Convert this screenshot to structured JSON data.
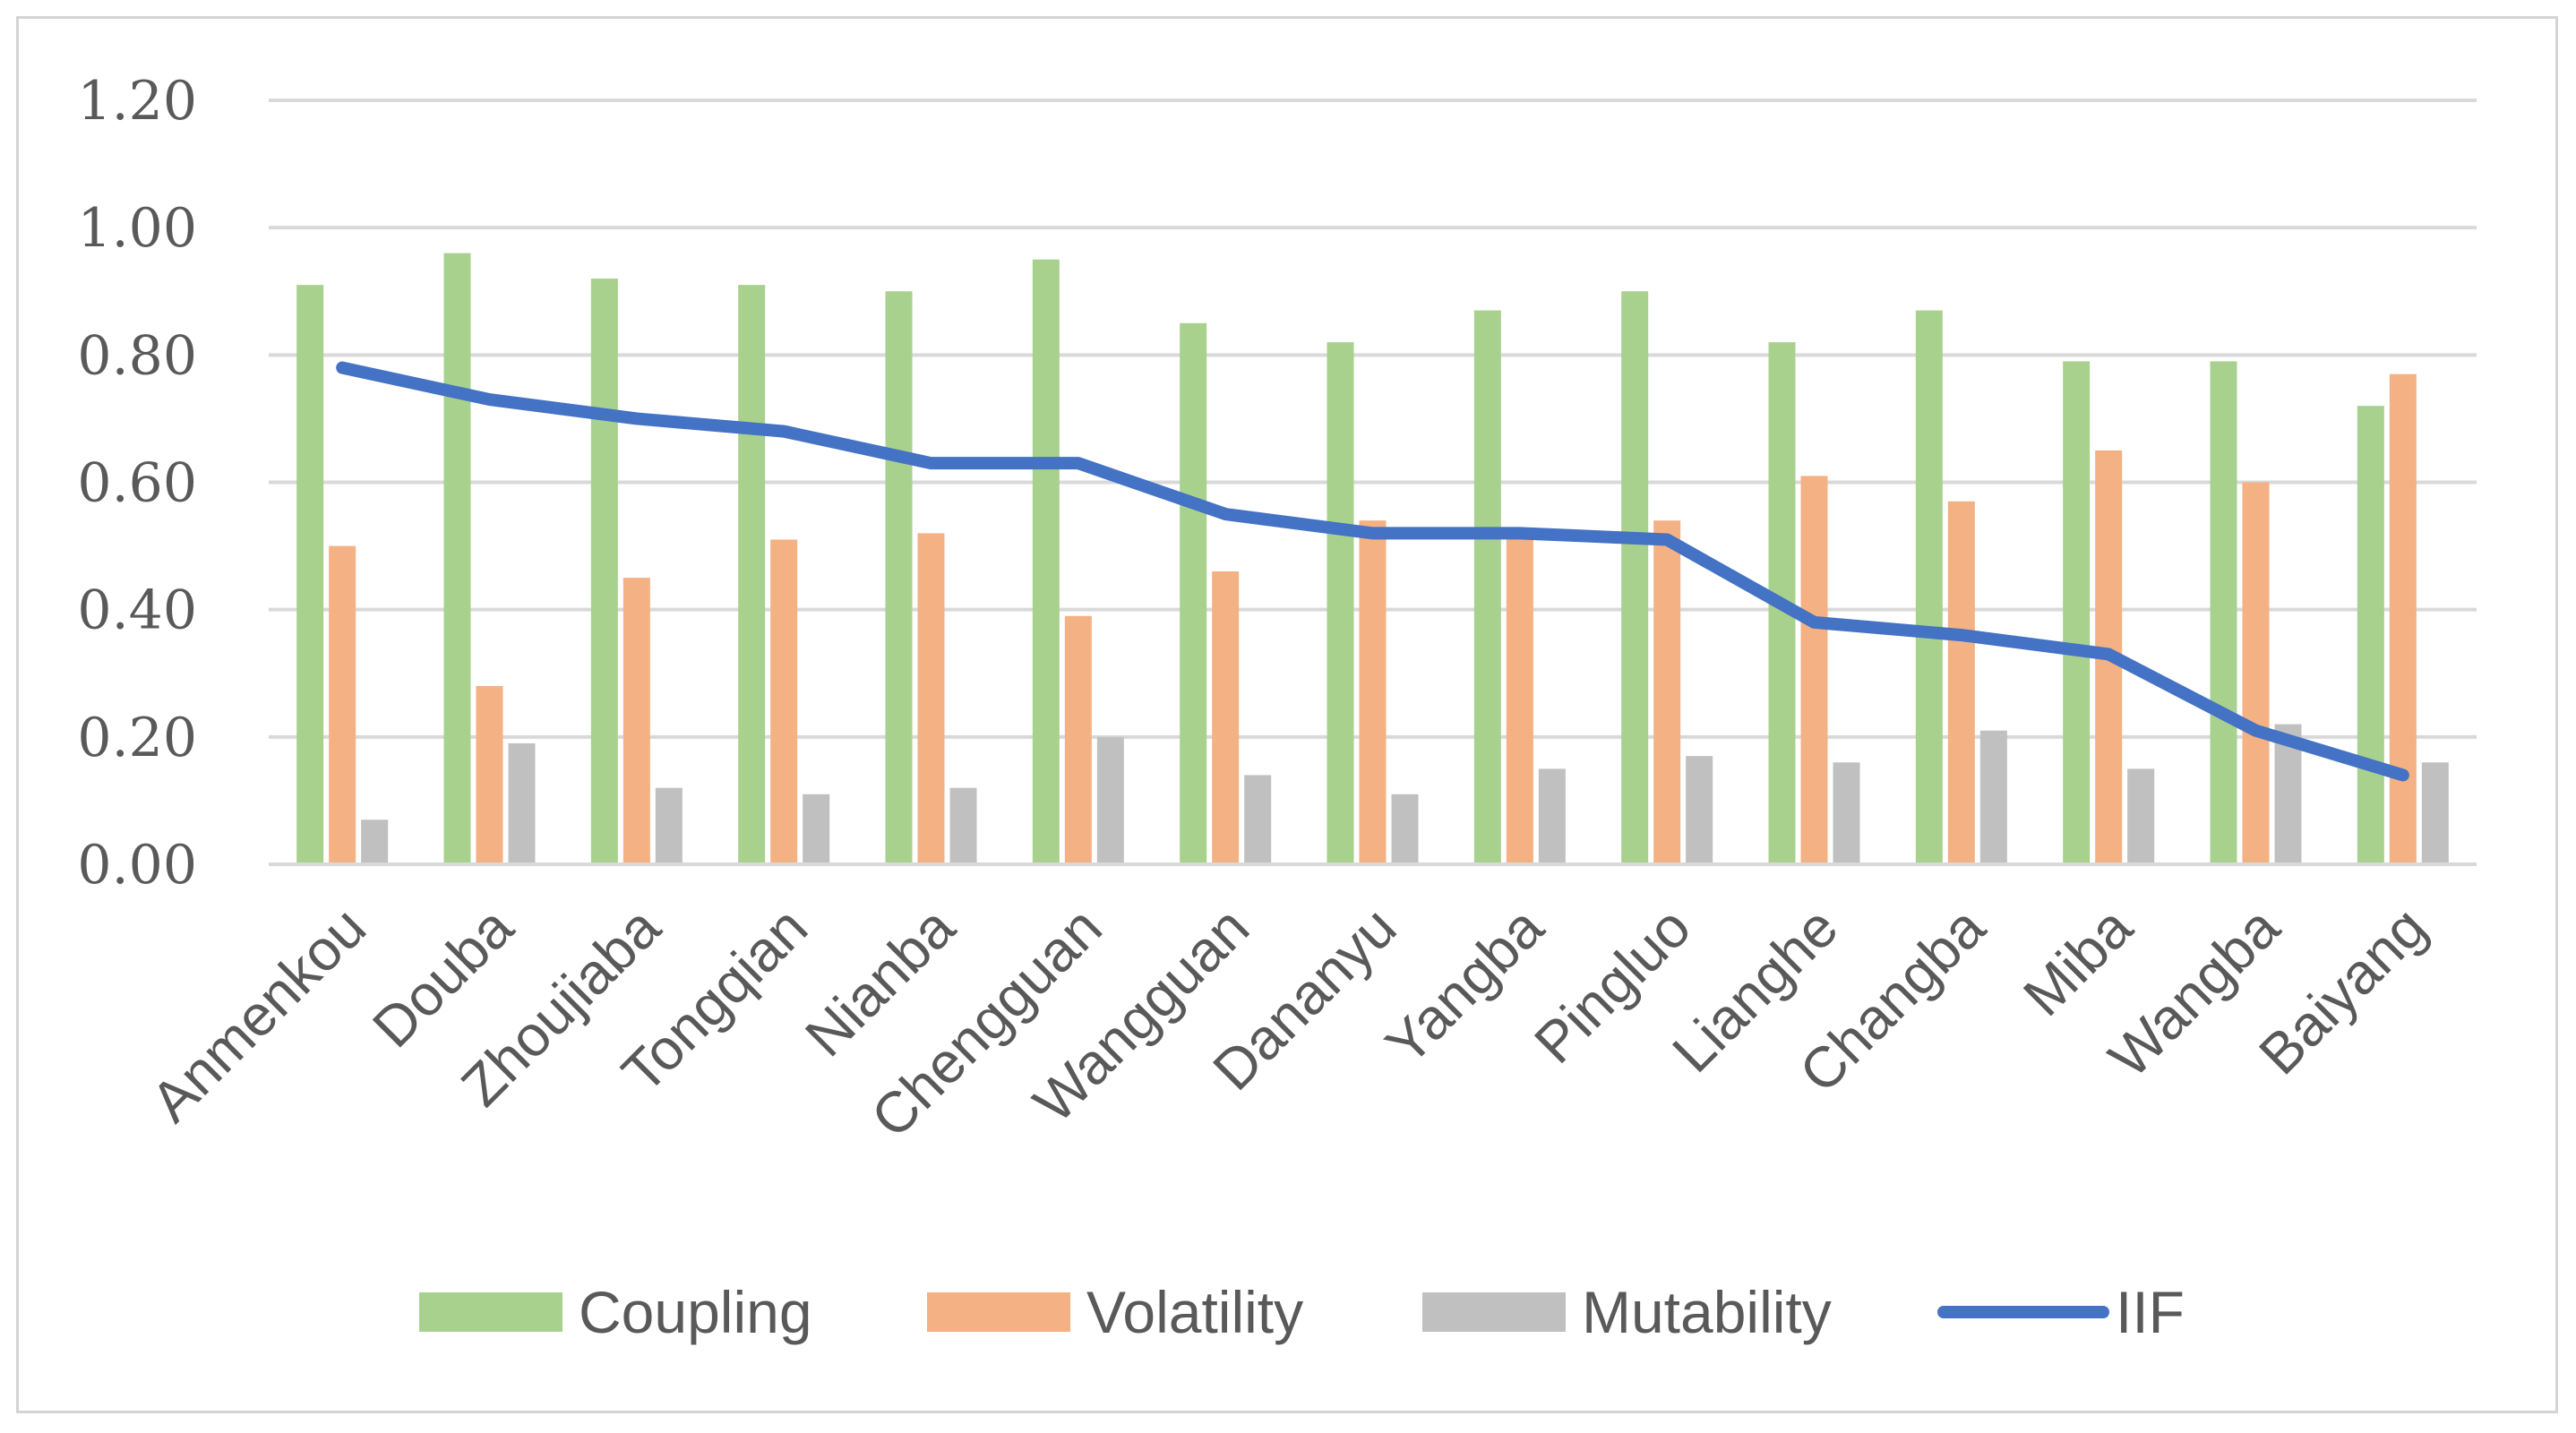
{
  "chart_data": {
    "type": "bar",
    "title": "",
    "xlabel": "",
    "ylabel": "",
    "ylim": [
      0,
      1.2
    ],
    "ytick_step": 0.2,
    "ytick_labels": [
      "0.00",
      "0.20",
      "0.40",
      "0.60",
      "0.80",
      "1.00",
      "1.20"
    ],
    "grid": true,
    "legend_position": "bottom",
    "categories": [
      "Anmenkou",
      "Douba",
      "Zhoujiaba",
      "Tongqian",
      "Nianba",
      "Chengguan",
      "Wangguan",
      "Dananyu",
      "Yangba",
      "Pingluo",
      "Lianghe",
      "Changba",
      "Miba",
      "Wangba",
      "Baiyang"
    ],
    "series": [
      {
        "name": "Coupling",
        "kind": "bar",
        "color": "#a9d18e",
        "values": [
          0.91,
          0.96,
          0.92,
          0.91,
          0.9,
          0.95,
          0.85,
          0.82,
          0.87,
          0.9,
          0.82,
          0.87,
          0.79,
          0.79,
          0.72
        ]
      },
      {
        "name": "Volatility",
        "kind": "bar",
        "color": "#f4b183",
        "values": [
          0.5,
          0.28,
          0.45,
          0.51,
          0.52,
          0.39,
          0.46,
          0.54,
          0.52,
          0.54,
          0.61,
          0.57,
          0.65,
          0.6,
          0.77
        ]
      },
      {
        "name": "Mutability",
        "kind": "bar",
        "color": "#c0c0c0",
        "values": [
          0.07,
          0.19,
          0.12,
          0.11,
          0.12,
          0.2,
          0.14,
          0.11,
          0.15,
          0.17,
          0.16,
          0.21,
          0.15,
          0.22,
          0.16
        ]
      },
      {
        "name": "IIF",
        "kind": "line",
        "color": "#4472c4",
        "values": [
          0.78,
          0.73,
          0.7,
          0.68,
          0.63,
          0.63,
          0.55,
          0.52,
          0.52,
          0.51,
          0.38,
          0.36,
          0.33,
          0.21,
          0.14
        ]
      }
    ]
  }
}
